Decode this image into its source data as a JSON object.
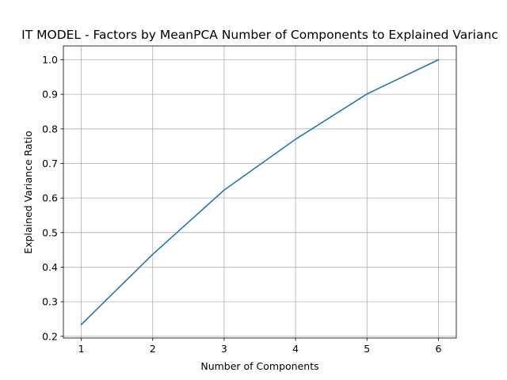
{
  "chart_data": {
    "type": "line",
    "title": "IT MODEL - Factors by MeanPCA Number of Components to Explained Varianc",
    "xlabel": "Number of Components",
    "ylabel": "Explained Variance Ratio",
    "x": [
      1,
      2,
      3,
      4,
      5,
      6
    ],
    "series": [
      {
        "values": [
          0.234,
          0.437,
          0.623,
          0.77,
          0.901,
          1.0
        ],
        "color": "#1f77b4"
      }
    ],
    "xlim": [
      0.75,
      6.25
    ],
    "ylim": [
      0.195,
      1.04
    ],
    "xticks": [
      "1",
      "2",
      "3",
      "4",
      "5",
      "6"
    ],
    "yticks": [
      "0.2",
      "0.3",
      "0.4",
      "0.5",
      "0.6",
      "0.7",
      "0.8",
      "0.9",
      "1.0"
    ],
    "grid": true,
    "legend": "none"
  }
}
